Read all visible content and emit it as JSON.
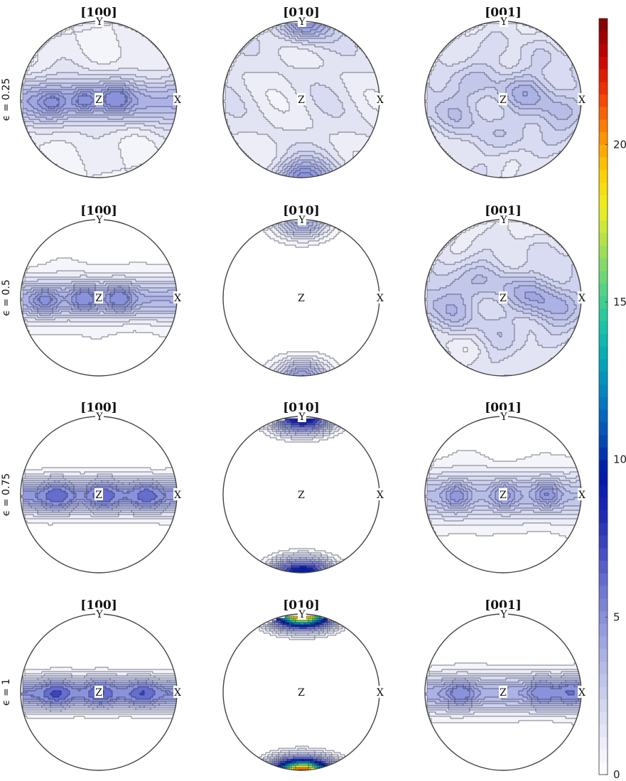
{
  "chart_data": {
    "type": "pole-figure-contour",
    "columns": [
      "[100]",
      "[010]",
      "[001]"
    ],
    "rows": [
      "ϵ = 0.25",
      "ϵ = 0.5",
      "ϵ = 0.75",
      "ϵ = 1"
    ],
    "axis_labels": {
      "x": "X",
      "y": "Y",
      "z": "Z"
    },
    "colorbar": {
      "range": [
        0,
        24
      ],
      "ticks": [
        0,
        5,
        10,
        15,
        20
      ],
      "colors": [
        "#ffffff",
        "#e9eaf6",
        "#ced2ee",
        "#b0b6e6",
        "#8e96dc",
        "#6a72d1",
        "#3f49c3",
        "#1a25b5",
        "#0019a8",
        "#0050b8",
        "#0080c4",
        "#00aab8",
        "#1dc8a3",
        "#5ed57f",
        "#a8e050",
        "#eef01f",
        "#ffcc00",
        "#ff8a00",
        "#f53a00",
        "#c80000",
        "#7e0000"
      ]
    },
    "panels": [
      [
        {
          "pattern": "band",
          "band_max": 3.0,
          "spots": [
            {
              "x": -0.2,
              "y": 0.0,
              "v": 3.6
            },
            {
              "x": 0.2,
              "y": 0.03,
              "v": 3.4
            },
            {
              "x": -0.6,
              "y": -0.03,
              "v": 3.1
            }
          ],
          "bg": 0.9,
          "sigma": 0.2
        },
        {
          "pattern": "poles",
          "pole_max": 3.6,
          "bg": 1.2
        },
        {
          "pattern": "random",
          "band_max": 1.0,
          "spots": [
            {
              "x": 0.35,
              "y": 0.15,
              "v": 2.6
            },
            {
              "x": -0.6,
              "y": 0.05,
              "v": 2.1
            },
            {
              "x": 0.25,
              "y": -0.4,
              "v": 2.0
            },
            {
              "x": 0.75,
              "y": -0.3,
              "v": 2.1
            },
            {
              "x": -0.4,
              "y": -0.6,
              "v": 2.0
            },
            {
              "x": -0.1,
              "y": 0.55,
              "v": 1.9
            }
          ],
          "bg": 1.4,
          "sigma": 0.22
        }
      ],
      [
        {
          "pattern": "band",
          "band_max": 3.4,
          "spots": [
            {
              "x": -0.2,
              "y": 0.0,
              "v": 4.2
            },
            {
              "x": 0.25,
              "y": 0.0,
              "v": 4.0
            },
            {
              "x": -0.7,
              "y": -0.03,
              "v": 3.6
            }
          ],
          "bg": 0.3,
          "sigma": 0.16
        },
        {
          "pattern": "poles",
          "pole_max": 4.3,
          "bg": 0.0
        },
        {
          "pattern": "random",
          "band_max": 1.3,
          "spots": [
            {
              "x": 0.45,
              "y": 0.05,
              "v": 2.7
            },
            {
              "x": -0.7,
              "y": 0.0,
              "v": 2.5
            },
            {
              "x": -0.15,
              "y": 0.35,
              "v": 2.1
            },
            {
              "x": 0.0,
              "y": -0.7,
              "v": 2.2
            },
            {
              "x": 0.7,
              "y": -0.2,
              "v": 2.1
            }
          ],
          "bg": 1.2,
          "sigma": 0.22
        }
      ],
      [
        {
          "pattern": "band",
          "band_max": 4.6,
          "spots": [
            {
              "x": -0.55,
              "y": 0.0,
              "v": 5.2
            },
            {
              "x": 0.05,
              "y": 0.0,
              "v": 5.1
            },
            {
              "x": 0.6,
              "y": 0.0,
              "v": 5.0
            }
          ],
          "bg": 0.1,
          "sigma": 0.12
        },
        {
          "pattern": "poles",
          "pole_max": 10.5,
          "bg": 0.0
        },
        {
          "pattern": "band",
          "band_max": 2.9,
          "spots": [
            {
              "x": -0.6,
              "y": 0.0,
              "v": 3.4
            },
            {
              "x": 0.0,
              "y": 0.0,
              "v": 3.3
            },
            {
              "x": 0.55,
              "y": 0.03,
              "v": 3.6
            },
            {
              "x": 0.0,
              "y": -0.65,
              "v": 1.4
            },
            {
              "x": 0.0,
              "y": 0.62,
              "v": 1.3
            }
          ],
          "bg": 0.3,
          "sigma": 0.2
        }
      ],
      [
        {
          "pattern": "band",
          "band_max": 5.0,
          "spots": [
            {
              "x": -0.55,
              "y": 0.0,
              "v": 5.6
            },
            {
              "x": 0.0,
              "y": 0.0,
              "v": 5.4
            },
            {
              "x": 0.55,
              "y": 0.0,
              "v": 5.3
            }
          ],
          "bg": 0.0,
          "sigma": 0.1
        },
        {
          "pattern": "poles",
          "pole_max": 21.5,
          "bg": 0.0
        },
        {
          "pattern": "band",
          "band_max": 3.8,
          "spots": [
            {
              "x": -0.55,
              "y": 0.0,
              "v": 4.1
            },
            {
              "x": 0.5,
              "y": 0.02,
              "v": 4.3
            },
            {
              "x": 0.85,
              "y": 0.02,
              "v": 4.6
            },
            {
              "x": 0.0,
              "y": -0.88,
              "v": 1.0
            },
            {
              "x": 0.0,
              "y": 0.9,
              "v": 1.0
            }
          ],
          "bg": 0.1,
          "sigma": 0.14
        }
      ]
    ]
  }
}
